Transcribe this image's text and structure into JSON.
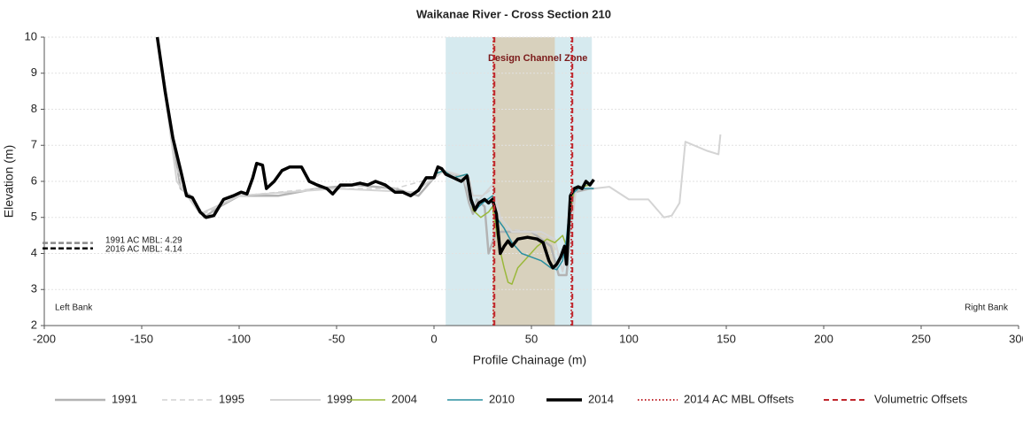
{
  "chart_data": {
    "type": "line",
    "title": "Waikanae River - Cross Section  210",
    "xlabel": "Profile Chainage (m)",
    "ylabel": "Elevation (m)",
    "xlim": [
      -200,
      300
    ],
    "ylim": [
      2,
      10
    ],
    "xticks": [
      -200,
      -150,
      -100,
      -50,
      0,
      50,
      100,
      150,
      200,
      250,
      300
    ],
    "yticks": [
      2,
      3,
      4,
      5,
      6,
      7,
      8,
      9,
      10
    ],
    "grid": true,
    "zones": [
      {
        "color": "#cfe6ec",
        "x": [
          6,
          81
        ]
      },
      {
        "color": "#d8ccb4",
        "x": [
          30,
          62
        ]
      }
    ],
    "zone_label": "Design Channel Zone",
    "mbl": [
      {
        "label": "1991 AC MBL: 4.29",
        "value": 4.29,
        "color": "#8c8c8c"
      },
      {
        "label": "2016 AC MBL: 4.14",
        "value": 4.14,
        "color": "#000000"
      }
    ],
    "annotations": [
      "Left Bank",
      "Right Bank"
    ],
    "series": [
      {
        "name": "1991",
        "color": "#b3b3b3",
        "width": 2.5,
        "dash": "",
        "x": [
          -142,
          -133,
          -130,
          -125,
          -118,
          -110,
          -100,
          -80,
          -60,
          -40,
          -20,
          -8,
          0,
          5,
          15,
          18,
          20,
          22,
          26,
          28,
          32,
          38,
          50,
          60,
          64,
          68,
          70,
          72,
          80,
          82
        ],
        "values": [
          10,
          6.8,
          5.8,
          5.6,
          5.0,
          5.3,
          5.6,
          5.6,
          5.8,
          5.9,
          5.8,
          5.6,
          6.1,
          6.3,
          6.1,
          5.4,
          5.1,
          5.5,
          5.3,
          4.0,
          4.6,
          4.6,
          4.6,
          4.2,
          3.4,
          3.4,
          4.6,
          5.7,
          5.8,
          5.8
        ]
      },
      {
        "name": "1995",
        "color": "#d2d2d2",
        "width": 1.5,
        "dash": "6 4",
        "x": [
          -142,
          -133,
          -128,
          -118,
          -100,
          -60,
          -20,
          0,
          5,
          15,
          20,
          25,
          30,
          35,
          50,
          60,
          65,
          70,
          73,
          82
        ],
        "values": [
          10,
          6.5,
          5.7,
          5.1,
          5.6,
          5.8,
          5.8,
          6.1,
          6.3,
          6.1,
          5.3,
          5.6,
          5.8,
          4.7,
          4.6,
          4.4,
          3.8,
          4.8,
          5.8,
          5.8
        ]
      },
      {
        "name": "1999",
        "color": "#d4d4d4",
        "width": 2,
        "dash": "",
        "x": [
          -142,
          -132,
          -120,
          -100,
          -50,
          -10,
          0,
          5,
          18,
          20,
          25,
          30,
          34,
          40,
          55,
          62,
          66,
          70,
          73,
          82,
          90,
          100,
          110,
          118,
          122,
          126,
          129,
          140,
          146,
          147
        ],
        "values": [
          10,
          6.0,
          5.1,
          5.6,
          5.8,
          5.7,
          6.1,
          6.3,
          6.1,
          5.6,
          5.6,
          5.9,
          5.0,
          4.6,
          4.6,
          4.4,
          3.5,
          4.5,
          5.8,
          5.8,
          5.85,
          5.5,
          5.5,
          5.0,
          5.05,
          5.4,
          7.1,
          6.85,
          6.75,
          7.3
        ]
      },
      {
        "name": "2004",
        "color": "#9ab83a",
        "width": 1.5,
        "dash": "",
        "x": [
          0,
          5,
          10,
          17,
          19,
          20,
          24,
          28,
          30,
          33,
          36,
          38,
          40,
          43,
          48,
          53,
          58,
          62,
          66,
          68,
          70,
          72,
          80,
          82
        ],
        "values": [
          6.2,
          6.3,
          6.1,
          6.2,
          5.6,
          5.2,
          5.0,
          5.15,
          5.3,
          4.3,
          3.6,
          3.2,
          3.15,
          3.6,
          3.9,
          4.2,
          4.4,
          4.3,
          4.5,
          4.2,
          5.2,
          5.8,
          5.9,
          6.0
        ]
      },
      {
        "name": "2010",
        "color": "#2a8fa0",
        "width": 1.5,
        "dash": "",
        "x": [
          0,
          5,
          10,
          17,
          19,
          21,
          25,
          30,
          32,
          36,
          40,
          45,
          50,
          55,
          60,
          63,
          66,
          68,
          70,
          74,
          82
        ],
        "values": [
          6.2,
          6.3,
          6.1,
          6.2,
          5.4,
          5.2,
          5.4,
          5.6,
          5.0,
          4.7,
          4.3,
          4.0,
          3.9,
          3.8,
          3.6,
          3.55,
          3.8,
          4.4,
          5.6,
          5.8,
          5.8
        ]
      },
      {
        "name": "2014",
        "color": "#000000",
        "width": 3.5,
        "dash": "",
        "x": [
          -142,
          -138,
          -134,
          -130,
          -127,
          -124,
          -120,
          -117,
          -113,
          -108,
          -103,
          -99,
          -96,
          -93,
          -91,
          -88,
          -86,
          -82,
          -78,
          -74,
          -68,
          -64,
          -60,
          -55,
          -52,
          -48,
          -42,
          -38,
          -34,
          -30,
          -25,
          -20,
          -16,
          -12,
          -8,
          -4,
          0,
          2,
          4,
          6,
          10,
          14,
          17,
          19,
          21,
          23,
          26,
          28,
          30,
          32,
          34,
          36,
          38,
          40,
          43,
          48,
          53,
          56,
          59,
          61,
          63,
          65,
          67,
          68,
          70,
          72,
          74,
          76,
          78,
          80,
          82
        ],
        "values": [
          10,
          8.5,
          7.2,
          6.3,
          5.6,
          5.55,
          5.15,
          5.0,
          5.05,
          5.5,
          5.6,
          5.7,
          5.65,
          6.1,
          6.5,
          6.45,
          5.8,
          6.0,
          6.3,
          6.4,
          6.4,
          6.0,
          5.9,
          5.8,
          5.65,
          5.9,
          5.9,
          5.95,
          5.9,
          6.0,
          5.9,
          5.7,
          5.7,
          5.6,
          5.75,
          6.1,
          6.1,
          6.4,
          6.35,
          6.2,
          6.1,
          6.0,
          6.15,
          5.5,
          5.2,
          5.4,
          5.5,
          5.4,
          5.5,
          5.1,
          4.0,
          4.2,
          4.35,
          4.2,
          4.4,
          4.45,
          4.4,
          4.3,
          3.8,
          3.6,
          3.7,
          3.9,
          4.2,
          3.7,
          5.6,
          5.8,
          5.85,
          5.8,
          6.0,
          5.9,
          6.05
        ]
      }
    ],
    "offsets": [
      {
        "name": "2014 AC MBL Offsets",
        "color": "#c0272d",
        "dash": "1.5 2.5",
        "x": [
          30.5,
          70.5
        ]
      },
      {
        "name": "Volumetric Offsets",
        "color": "#c0272d",
        "dash": "6 4",
        "x": [
          31,
          71
        ]
      }
    ]
  }
}
